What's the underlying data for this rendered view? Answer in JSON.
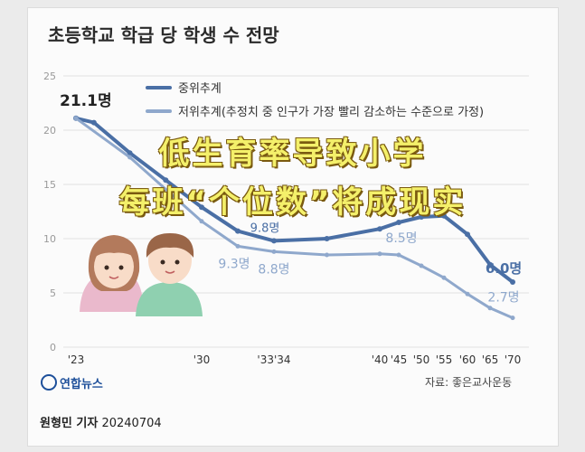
{
  "chart_data": {
    "type": "line",
    "title": "초등학교 학급 당 학생 수 전망",
    "ylim": [
      0,
      25
    ],
    "yticks": [
      0,
      5,
      10,
      15,
      20,
      25
    ],
    "x_ticks": [
      "'23",
      "'30",
      "'33'34",
      "'40",
      "'45",
      "'50",
      "'55",
      "'60",
      "'65",
      "'70"
    ],
    "series": [
      {
        "name": "중위추계",
        "color": "#4a6fa5",
        "points": [
          {
            "x": 2023,
            "y": 21.1
          },
          {
            "x": 2024,
            "y": 20.7
          },
          {
            "x": 2026,
            "y": 17.9
          },
          {
            "x": 2028,
            "y": 15.4
          },
          {
            "x": 2030,
            "y": 12.9
          },
          {
            "x": 2032,
            "y": 10.7
          },
          {
            "x": 2034,
            "y": 9.8
          },
          {
            "x": 2037,
            "y": 10.0
          },
          {
            "x": 2040,
            "y": 10.9
          },
          {
            "x": 2045,
            "y": 11.5
          },
          {
            "x": 2050,
            "y": 12.0
          },
          {
            "x": 2055,
            "y": 12.1
          },
          {
            "x": 2060,
            "y": 10.4
          },
          {
            "x": 2065,
            "y": 7.6
          },
          {
            "x": 2070,
            "y": 6.0
          }
        ]
      },
      {
        "name": "저위추계(추정치 중 인구가 가장 빨리 감소하는 수준으로 가정)",
        "color": "#8fa8cc",
        "points": [
          {
            "x": 2023,
            "y": 21.1
          },
          {
            "x": 2026,
            "y": 17.5
          },
          {
            "x": 2030,
            "y": 11.6
          },
          {
            "x": 2032,
            "y": 9.3
          },
          {
            "x": 2034,
            "y": 8.8
          },
          {
            "x": 2037,
            "y": 8.5
          },
          {
            "x": 2040,
            "y": 8.6
          },
          {
            "x": 2045,
            "y": 8.5
          },
          {
            "x": 2050,
            "y": 7.5
          },
          {
            "x": 2055,
            "y": 6.4
          },
          {
            "x": 2060,
            "y": 4.9
          },
          {
            "x": 2065,
            "y": 3.6
          },
          {
            "x": 2070,
            "y": 2.7
          }
        ]
      }
    ],
    "data_labels": [
      {
        "series": 0,
        "x": 2023,
        "text": "21.1명"
      },
      {
        "series": 0,
        "x": 2034,
        "text": "9.8명"
      },
      {
        "series": 0,
        "x": 2070,
        "text": "6.0명"
      },
      {
        "series": 1,
        "x": 2032,
        "text": "9.3명"
      },
      {
        "series": 1,
        "x": 2034,
        "text": "8.8명"
      },
      {
        "series": 1,
        "x": 2045,
        "text": "8.5명"
      },
      {
        "series": 1,
        "x": 2070,
        "text": "2.7명"
      }
    ],
    "grid": true,
    "legend": "top"
  },
  "overlay": {
    "line1": "低生育率导致小学",
    "line2": "每班“个位数”将成现实"
  },
  "footer": {
    "logo_text": "연합뉴스",
    "source": "자료: 좋은교사운동",
    "reporter": "원형민 기자",
    "date": "20240704"
  }
}
